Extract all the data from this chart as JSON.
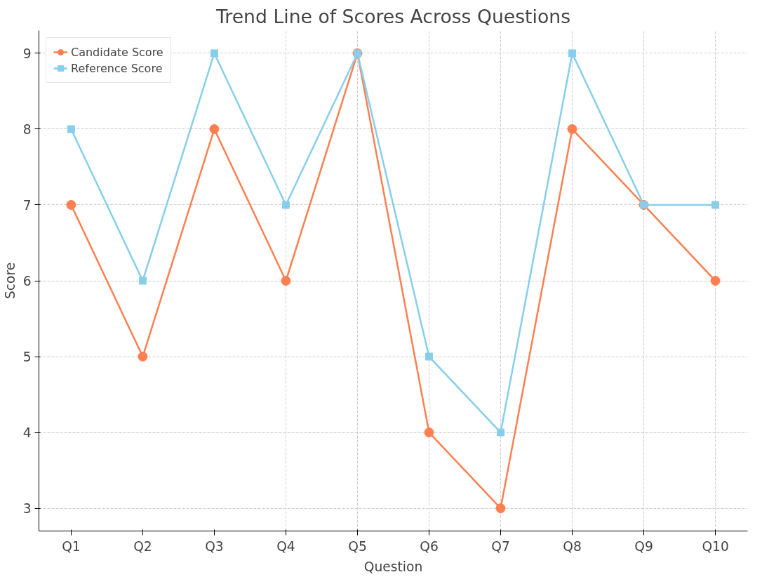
{
  "chart_data": {
    "type": "line",
    "title": "Trend Line of Scores Across Questions",
    "xlabel": "Question",
    "ylabel": "Score",
    "categories": [
      "Q1",
      "Q2",
      "Q3",
      "Q4",
      "Q5",
      "Q6",
      "Q7",
      "Q8",
      "Q9",
      "Q10"
    ],
    "series": [
      {
        "name": "Candidate Score",
        "color": "#ff7f50",
        "marker": "circle",
        "values": [
          7,
          5,
          8,
          6,
          9,
          4,
          3,
          8,
          7,
          6
        ]
      },
      {
        "name": "Reference Score",
        "color": "#87ceeb",
        "marker": "square",
        "values": [
          8,
          6,
          9,
          7,
          9,
          5,
          4,
          9,
          7,
          7
        ]
      }
    ],
    "ylim": [
      2.7,
      9.3
    ],
    "yticks": [
      3,
      4,
      5,
      6,
      7,
      8,
      9
    ],
    "grid": true,
    "legend": "top left",
    "line_style": "solid"
  }
}
